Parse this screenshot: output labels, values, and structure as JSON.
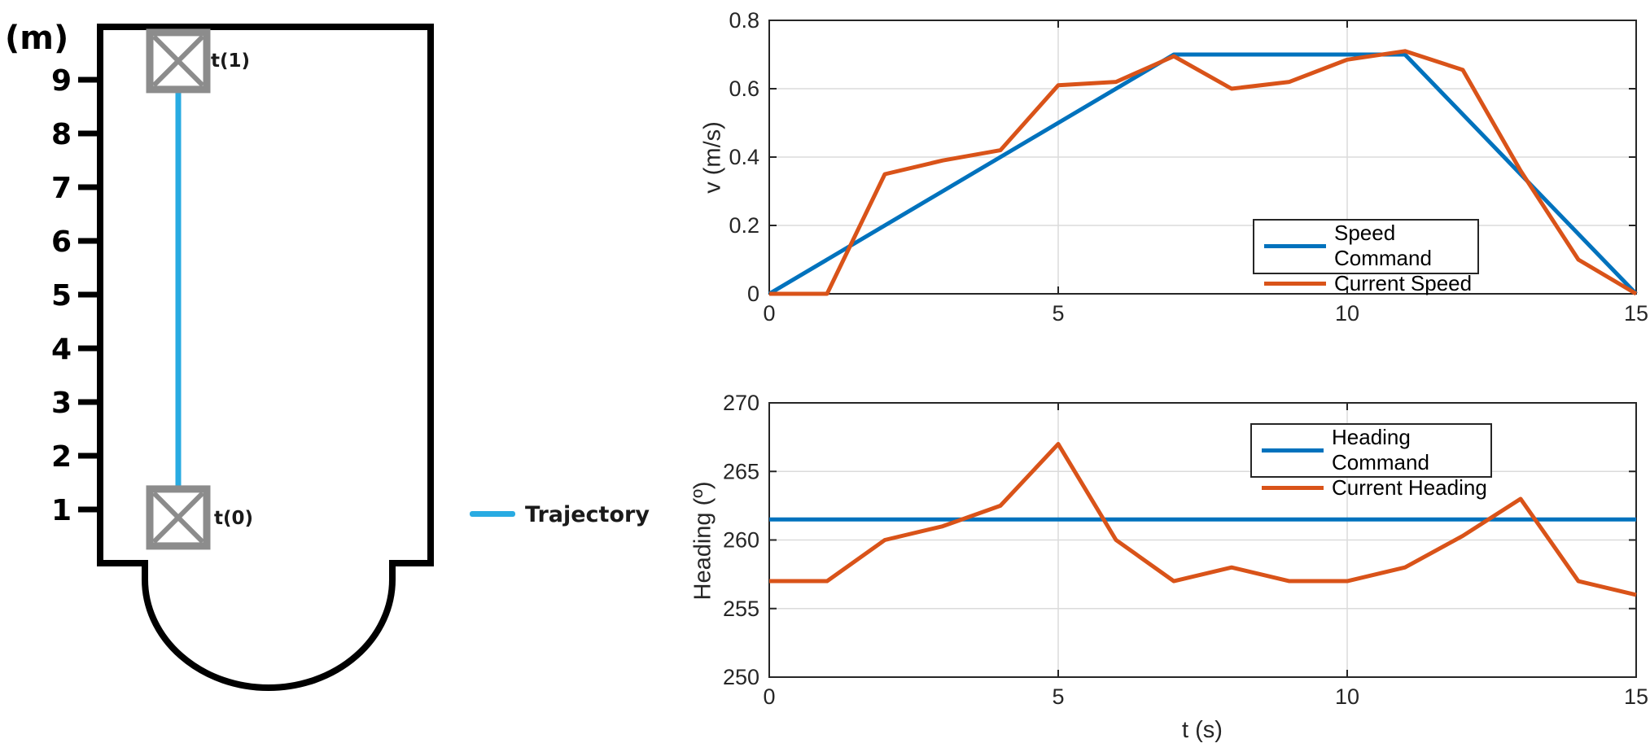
{
  "colors": {
    "blue": "#0072BD",
    "orange": "#D95319",
    "trajectory": "#29ABE2",
    "marker": "#8C8C8C",
    "axis": "#262626",
    "grid": "#DBDBDB",
    "outline": "#000000"
  },
  "map": {
    "unit_label": "(m)",
    "ticks": [
      "9",
      "8",
      "7",
      "6",
      "5",
      "4",
      "3",
      "2",
      "1"
    ],
    "waypoints": [
      {
        "label": "t(1)",
        "m": 9.35
      },
      {
        "label": "t(0)",
        "m": 0.85
      }
    ],
    "legend_label": "Trajectory"
  },
  "chart_data": [
    {
      "type": "line",
      "title": "",
      "xlabel": "",
      "ylabel": "v (m/s)",
      "xlim": [
        0,
        15
      ],
      "ylim": [
        0,
        0.8
      ],
      "xticks": [
        0,
        5,
        10,
        15
      ],
      "yticks": [
        0,
        0.2,
        0.4,
        0.6,
        0.8
      ],
      "grid": true,
      "legend_position": "middle-right",
      "series": [
        {
          "name": "Speed Command",
          "color": "#0072BD",
          "x": [
            0,
            7,
            11,
            15
          ],
          "y": [
            0,
            0.7,
            0.7,
            0
          ]
        },
        {
          "name": "Current Speed",
          "color": "#D95319",
          "x": [
            0,
            1,
            2,
            3,
            4,
            5,
            6,
            7,
            8,
            9,
            10,
            11,
            12,
            13,
            14,
            15
          ],
          "y": [
            0,
            0,
            0.35,
            0.39,
            0.42,
            0.61,
            0.62,
            0.695,
            0.6,
            0.62,
            0.685,
            0.71,
            0.655,
            0.36,
            0.1,
            0
          ]
        }
      ]
    },
    {
      "type": "line",
      "title": "",
      "xlabel": "t (s)",
      "ylabel": "Heading (º)",
      "xlim": [
        0,
        15
      ],
      "ylim": [
        250,
        270
      ],
      "xticks": [
        0,
        5,
        10,
        15
      ],
      "yticks": [
        250,
        255,
        260,
        265,
        270
      ],
      "grid": true,
      "legend_position": "upper-right",
      "series": [
        {
          "name": "Heading Command",
          "color": "#0072BD",
          "x": [
            0,
            15
          ],
          "y": [
            261.5,
            261.5
          ]
        },
        {
          "name": "Current Heading",
          "color": "#D95319",
          "x": [
            0,
            1,
            2,
            3,
            4,
            5,
            6,
            7,
            8,
            9,
            10,
            11,
            12,
            13,
            14,
            15
          ],
          "y": [
            257,
            257,
            260,
            261,
            262.5,
            267,
            260,
            257,
            258,
            257,
            257,
            258,
            260.3,
            263,
            257,
            256
          ]
        }
      ]
    }
  ]
}
